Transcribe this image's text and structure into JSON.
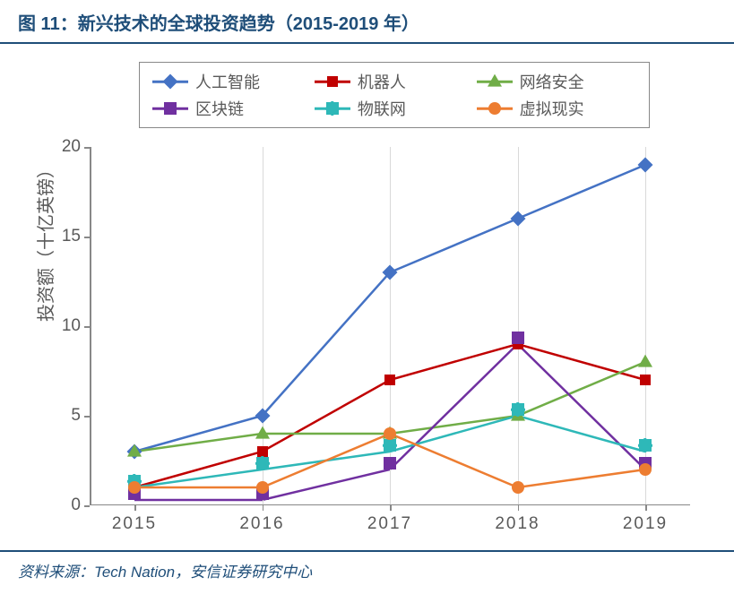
{
  "title": "图 11：新兴技术的全球投资趋势（2015-2019 年）",
  "source": "资料来源：Tech Nation，安信证券研究中心",
  "chart": {
    "type": "line",
    "ylabel": "投资额（十亿英镑）",
    "x_categories": [
      "2015",
      "2016",
      "2017",
      "2018",
      "2019"
    ],
    "ylim": [
      0,
      20
    ],
    "yticks": [
      0,
      5,
      10,
      15,
      20
    ],
    "background_color": "#ffffff",
    "grid_color": "#d9d9d9",
    "axis_color": "#888888",
    "text_color": "#595959",
    "label_fontsize": 20,
    "tick_fontsize": 19,
    "legend_fontsize": 18,
    "line_width": 2.5,
    "marker_size": 12,
    "series": [
      {
        "name": "人工智能",
        "label": "人工智能",
        "color": "#4472c4",
        "marker": "diamond",
        "values": [
          3,
          5,
          13,
          16,
          19
        ]
      },
      {
        "name": "机器人",
        "label": "机器人",
        "color": "#c00000",
        "marker": "square",
        "values": [
          1,
          3,
          7,
          9,
          7
        ]
      },
      {
        "name": "网络安全",
        "label": "网络安全",
        "color": "#70ad47",
        "marker": "triangle",
        "values": [
          3,
          4,
          4,
          5,
          8
        ]
      },
      {
        "name": "区块链",
        "label": "区块链",
        "color": "#7030a0",
        "marker": "x",
        "values": [
          0.3,
          0.3,
          2,
          9,
          2
        ]
      },
      {
        "name": "物联网",
        "label": "物联网",
        "color": "#2eb8b8",
        "marker": "star",
        "values": [
          1,
          2,
          3,
          5,
          3
        ]
      },
      {
        "name": "虚拟现实",
        "label": "虚拟现实",
        "color": "#ed7d31",
        "marker": "circle",
        "values": [
          1,
          1,
          4,
          1,
          2
        ]
      }
    ]
  }
}
